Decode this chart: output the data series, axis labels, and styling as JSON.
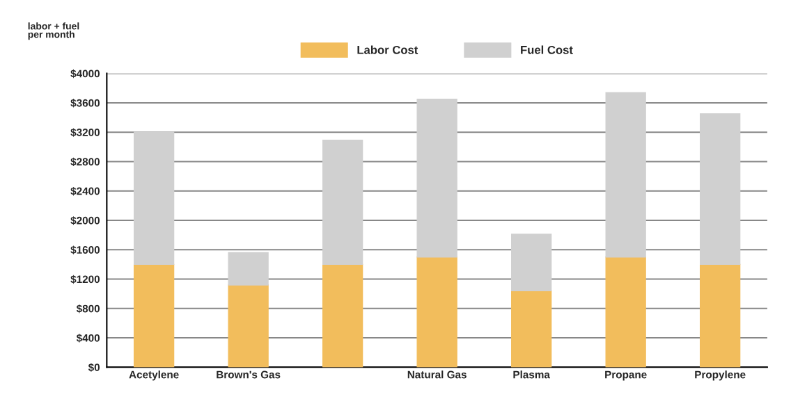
{
  "chart_data": {
    "type": "bar",
    "stacked": true,
    "ylabel": "labor + fuel\nper month",
    "categories": [
      "Acetylene",
      "Brown's Gas",
      null,
      "Natural Gas",
      "Plasma",
      "Propane",
      "Propylene"
    ],
    "series": [
      {
        "name": "Labor Cost",
        "color": "#f2bd5c",
        "values": [
          1400,
          1120,
          1400,
          1500,
          1040,
          1500,
          1400
        ]
      },
      {
        "name": "Fuel Cost",
        "color": "#d0d0d0",
        "values": [
          1800,
          440,
          1690,
          2150,
          770,
          2240,
          2050
        ]
      }
    ],
    "ylim": [
      0,
      4000
    ],
    "yticks": [
      {
        "value": 0,
        "label": "$0"
      },
      {
        "value": 400,
        "label": "$400"
      },
      {
        "value": 800,
        "label": "$800"
      },
      {
        "value": 1200,
        "label": "$1200"
      },
      {
        "value": 1600,
        "label": "$1600"
      },
      {
        "value": 2000,
        "label": "$2000"
      },
      {
        "value": 2400,
        "label": "$2400"
      },
      {
        "value": 2800,
        "label": "$2800"
      },
      {
        "value": 3200,
        "label": "$3200"
      },
      {
        "value": 3600,
        "label": "$3600"
      },
      {
        "value": 4000,
        "label": "$4000"
      }
    ],
    "grid": "y",
    "legend": "top"
  }
}
